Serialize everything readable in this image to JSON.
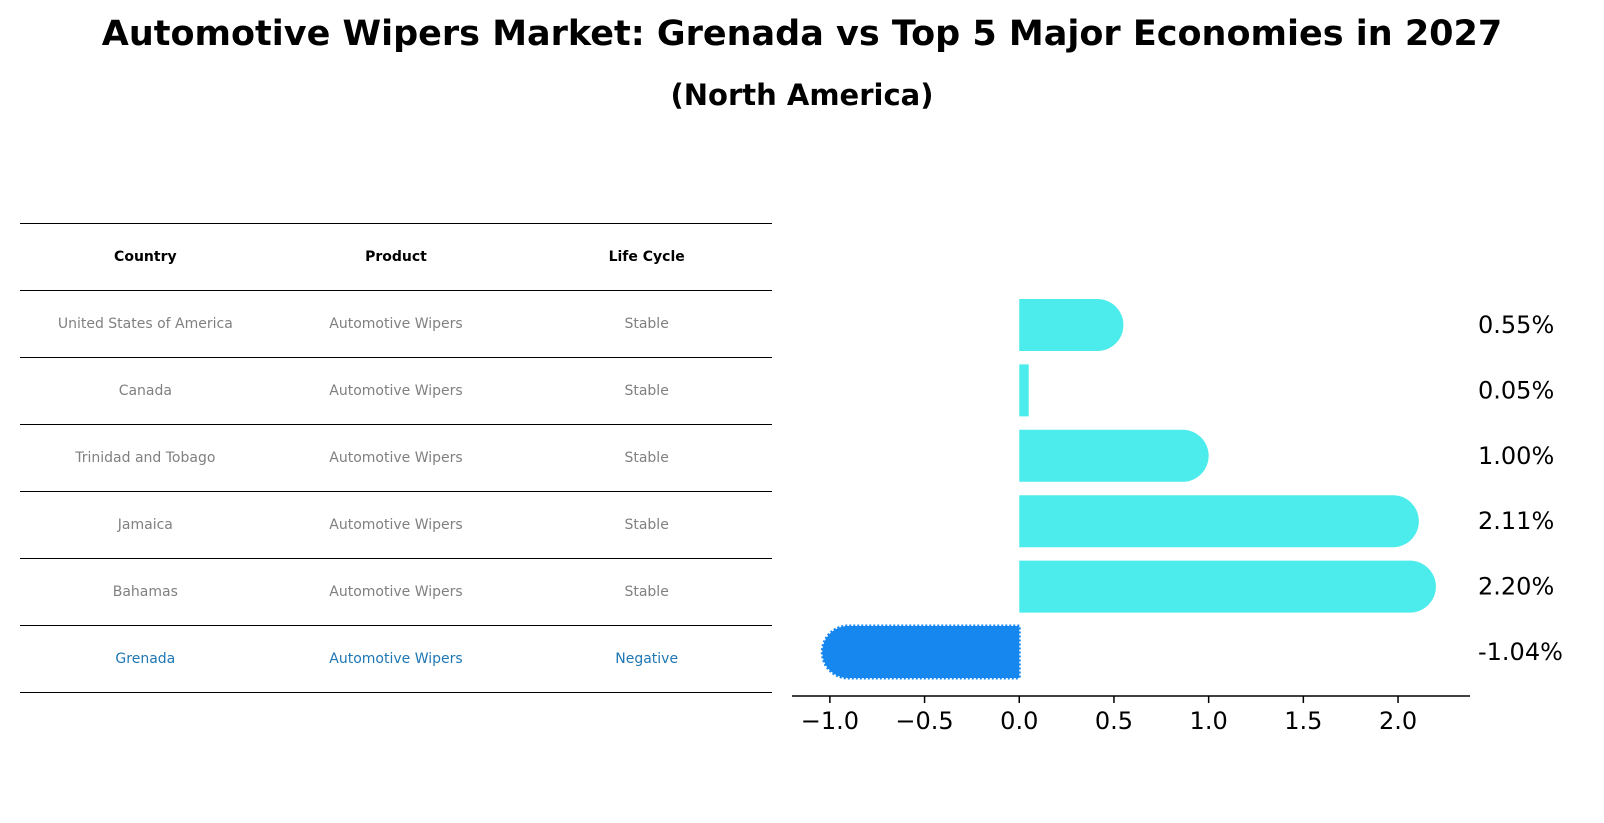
{
  "title": "Automotive Wipers Market: Grenada vs Top 5 Major Economies in 2027",
  "subtitle": "(North America)",
  "table": {
    "headers": [
      "Country",
      "Product",
      "Life Cycle"
    ],
    "rows": [
      {
        "country": "United States of America",
        "product": "Automotive Wipers",
        "life_cycle": "Stable"
      },
      {
        "country": "Canada",
        "product": "Automotive Wipers",
        "life_cycle": "Stable"
      },
      {
        "country": "Trinidad and Tobago",
        "product": "Automotive Wipers",
        "life_cycle": "Stable"
      },
      {
        "country": "Jamaica",
        "product": "Automotive Wipers",
        "life_cycle": "Stable"
      },
      {
        "country": "Bahamas",
        "product": "Automotive Wipers",
        "life_cycle": "Stable"
      },
      {
        "country": "Grenada",
        "product": "Automotive Wipers",
        "life_cycle": "Negative"
      }
    ]
  },
  "chart_data": {
    "type": "bar",
    "orientation": "horizontal",
    "categories": [
      "United States of America",
      "Canada",
      "Trinidad and Tobago",
      "Jamaica",
      "Bahamas",
      "Grenada"
    ],
    "values": [
      0.55,
      0.05,
      1.0,
      2.11,
      2.2,
      -1.04
    ],
    "data_labels": [
      "0.55%",
      "0.05%",
      "1.00%",
      "2.11%",
      "2.20%",
      "-1.04%"
    ],
    "xlim": [
      -1.2,
      2.38
    ],
    "xticks": [
      -1.0,
      -0.5,
      0.0,
      0.5,
      1.0,
      1.5,
      2.0
    ],
    "xtick_labels": [
      "−1.0",
      "−0.5",
      "0.0",
      "0.5",
      "1.0",
      "1.5",
      "2.0"
    ],
    "colors": {
      "default": "#4beceb",
      "highlight": "#1787f0"
    },
    "highlight_category": "Grenada",
    "grid": false
  }
}
